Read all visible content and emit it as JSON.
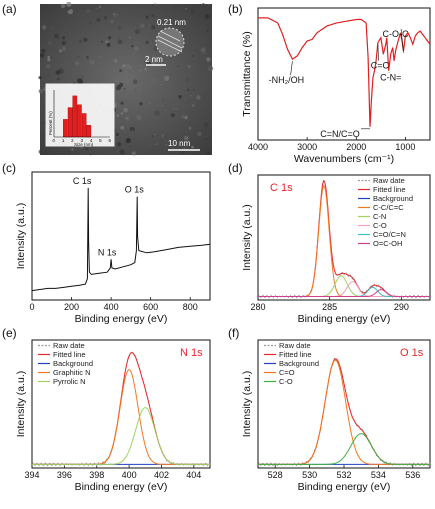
{
  "panels": {
    "a": {
      "letter": "(a)",
      "lattice_label": "0.21 nm",
      "scale_small": "2 nm",
      "scale_big": "10 nm",
      "histogram": {
        "ylabel": "Percent (%)",
        "xlabel": "Size (nm)",
        "ticks": [
          "0",
          "1",
          "2",
          "3",
          "4",
          "5",
          "6"
        ],
        "color": "#e02020"
      }
    },
    "b": {
      "letter": "(b)"
    },
    "c": {
      "letter": "(c)"
    },
    "d": {
      "letter": "(d)"
    },
    "e": {
      "letter": "(e)"
    },
    "f": {
      "letter": "(f)"
    }
  },
  "chart_data": [
    {
      "id": "a-histogram",
      "type": "bar",
      "categories": [
        1,
        1.5,
        2,
        2.5,
        3,
        3.5
      ],
      "values": [
        12,
        20,
        28,
        22,
        16,
        8
      ],
      "xlabel": "Size (nm)",
      "ylabel": "Percent (%)",
      "xlim": [
        0,
        6
      ],
      "ylim": [
        0,
        32
      ],
      "color": "#e02020"
    },
    {
      "id": "b",
      "type": "line",
      "xlabel": "Wavenumbers (cm⁻¹)",
      "ylabel": "Transmittance (%)",
      "xlim": [
        4000,
        500
      ],
      "xticks": [
        4000,
        3000,
        2000,
        1000
      ],
      "reversed_x": true,
      "color": "#e02020",
      "annotations": [
        "-NH₂/OH",
        "C=N/C=O",
        "C=C",
        "C-N=",
        "C-O-C"
      ],
      "x": [
        4000,
        3800,
        3600,
        3500,
        3400,
        3300,
        3200,
        3100,
        3000,
        2900,
        2800,
        2600,
        2400,
        2200,
        2000,
        1900,
        1800,
        1760,
        1720,
        1690,
        1660,
        1630,
        1600,
        1560,
        1500,
        1450,
        1400,
        1380,
        1340,
        1300,
        1260,
        1230,
        1200,
        1150,
        1100,
        1070,
        1040,
        1000,
        950,
        900,
        850,
        800,
        750,
        700,
        650,
        600,
        550,
        500
      ],
      "y": [
        94,
        94,
        91,
        84,
        75,
        69,
        71,
        76,
        80,
        81,
        85,
        89,
        91,
        92,
        93,
        93,
        91,
        70,
        28,
        45,
        58,
        62,
        67,
        79,
        82,
        72,
        78,
        82,
        62,
        72,
        76,
        68,
        74,
        80,
        85,
        80,
        74,
        83,
        85,
        82,
        78,
        83,
        85,
        86,
        84,
        82,
        80,
        78
      ]
    },
    {
      "id": "c",
      "type": "line",
      "xlabel": "Binding energy (eV)",
      "ylabel": "Intensity (a.u.)",
      "xlim": [
        0,
        900
      ],
      "xticks": [
        0,
        200,
        400,
        600,
        800
      ],
      "color": "#111111",
      "annotations": [
        "C 1s",
        "N 1s",
        "O 1s"
      ],
      "x": [
        0,
        40,
        80,
        120,
        160,
        200,
        240,
        270,
        280,
        284,
        286,
        290,
        300,
        340,
        380,
        396,
        400,
        404,
        420,
        460,
        500,
        520,
        528,
        532,
        534,
        540,
        580,
        620,
        680,
        740,
        800,
        860,
        900
      ],
      "y": [
        0.05,
        0.06,
        0.07,
        0.07,
        0.08,
        0.09,
        0.1,
        0.11,
        0.16,
        1.0,
        0.5,
        0.22,
        0.2,
        0.21,
        0.22,
        0.26,
        0.34,
        0.26,
        0.25,
        0.27,
        0.29,
        0.31,
        0.42,
        0.92,
        0.55,
        0.42,
        0.4,
        0.41,
        0.43,
        0.45,
        0.46,
        0.47,
        0.48
      ]
    },
    {
      "id": "d",
      "type": "line",
      "title": "C 1s",
      "xlabel": "Binding energy (eV)",
      "ylabel": "Intensity (a.u.)",
      "xlim": [
        280,
        292
      ],
      "xticks": [
        280,
        285,
        290
      ],
      "legend": "top-right",
      "series": [
        {
          "name": "Raw date",
          "color": "#999999",
          "dashed": true,
          "peaks": [
            [
              284.6,
              1.0,
              0.85
            ],
            [
              285.8,
              0.18,
              1.0
            ],
            [
              286.6,
              0.13,
              0.9
            ],
            [
              288.0,
              0.08,
              0.8
            ],
            [
              288.6,
              0.06,
              0.8
            ]
          ],
          "baseline": 0.03
        },
        {
          "name": "Fitted line",
          "color": "#e8262b",
          "peaks": [
            [
              284.6,
              1.0,
              0.85
            ],
            [
              285.8,
              0.18,
              1.0
            ],
            [
              286.6,
              0.13,
              0.9
            ],
            [
              288.0,
              0.08,
              0.8
            ],
            [
              288.6,
              0.06,
              0.8
            ]
          ],
          "baseline": 0.03
        },
        {
          "name": "Background",
          "color": "#2040c0",
          "peaks": [],
          "baseline": 0.03
        },
        {
          "name": "C-C/C=C",
          "color": "#f07820",
          "peaks": [
            [
              284.6,
              0.96,
              0.85
            ]
          ],
          "baseline": 0.03
        },
        {
          "name": "C-N",
          "color": "#a0d060",
          "peaks": [
            [
              285.8,
              0.18,
              1.0
            ]
          ],
          "baseline": 0.03
        },
        {
          "name": "C-O",
          "color": "#f0a0c0",
          "peaks": [
            [
              286.6,
              0.13,
              0.9
            ]
          ],
          "baseline": 0.03
        },
        {
          "name": "C=O/C=N",
          "color": "#40c0c0",
          "peaks": [
            [
              288.0,
              0.08,
              0.8
            ]
          ],
          "baseline": 0.03
        },
        {
          "name": "O=C-OH",
          "color": "#d04090",
          "peaks": [
            [
              288.6,
              0.06,
              0.8
            ]
          ],
          "baseline": 0.03
        }
      ]
    },
    {
      "id": "e",
      "type": "line",
      "title": "N 1s",
      "xlabel": "Binding energy (eV)",
      "ylabel": "Intensity (a.u.)",
      "xlim": [
        394,
        405
      ],
      "xticks": [
        394,
        396,
        398,
        400,
        402,
        404
      ],
      "legend": "top-left",
      "series": [
        {
          "name": "Raw date",
          "color": "#999999",
          "dashed": true,
          "peaks": [
            [
              400.0,
              0.8,
              1.3
            ],
            [
              401.0,
              0.48,
              1.4
            ]
          ],
          "baseline": 0.03
        },
        {
          "name": "Fitted line",
          "color": "#e8262b",
          "peaks": [
            [
              400.0,
              0.8,
              1.3
            ],
            [
              401.0,
              0.48,
              1.4
            ]
          ],
          "baseline": 0.03
        },
        {
          "name": "Background",
          "color": "#2040c0",
          "peaks": [],
          "baseline": 0.03
        },
        {
          "name": "Graphitic N",
          "color": "#f07820",
          "peaks": [
            [
              400.0,
              0.8,
              1.3
            ]
          ],
          "baseline": 0.03
        },
        {
          "name": "Pyrrolic N",
          "color": "#a0d060",
          "peaks": [
            [
              401.0,
              0.48,
              1.4
            ]
          ],
          "baseline": 0.03
        }
      ]
    },
    {
      "id": "f",
      "type": "line",
      "title": "O 1s",
      "xlabel": "Binding energy (eV)",
      "ylabel": "Intensity (a.u.)",
      "xlim": [
        527,
        537
      ],
      "xticks": [
        528,
        530,
        532,
        534,
        536
      ],
      "legend": "top-left",
      "series": [
        {
          "name": "Raw date",
          "color": "#999999",
          "dashed": true,
          "peaks": [
            [
              531.5,
              0.88,
              1.4
            ],
            [
              533.0,
              0.26,
              1.4
            ]
          ],
          "baseline": 0.03
        },
        {
          "name": "Fitted line",
          "color": "#e8262b",
          "peaks": [
            [
              531.5,
              0.88,
              1.4
            ],
            [
              533.0,
              0.26,
              1.4
            ]
          ],
          "baseline": 0.03
        },
        {
          "name": "Background",
          "color": "#2040c0",
          "peaks": [],
          "baseline": 0.03
        },
        {
          "name": "C=O",
          "color": "#f07820",
          "peaks": [
            [
              531.5,
              0.88,
              1.4
            ]
          ],
          "baseline": 0.03
        },
        {
          "name": "C-O",
          "color": "#40b040",
          "peaks": [
            [
              533.0,
              0.26,
              1.4
            ]
          ],
          "baseline": 0.03
        }
      ]
    }
  ]
}
